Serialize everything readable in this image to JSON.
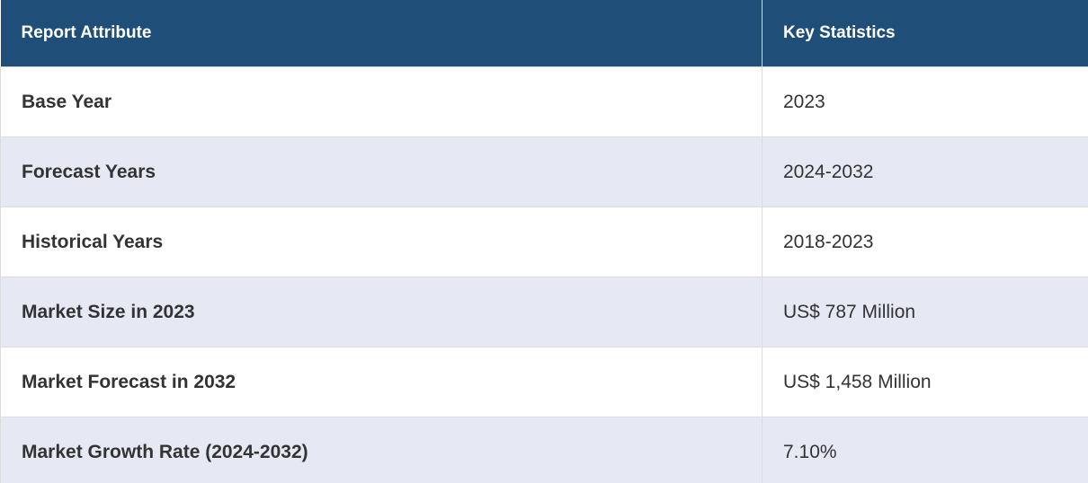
{
  "table": {
    "header": [
      "Report Attribute",
      "Key Statistics"
    ],
    "rows": [
      [
        "Base Year",
        "2023"
      ],
      [
        "Forecast Years",
        "2024-2032"
      ],
      [
        "Historical Years",
        "2018-2023"
      ],
      [
        "Market Size in 2023",
        "US$ 787 Million"
      ],
      [
        "Market Forecast in 2032",
        "US$ 1,458 Million"
      ],
      [
        "Market Growth Rate (2024-2032)",
        "7.10%"
      ]
    ]
  }
}
